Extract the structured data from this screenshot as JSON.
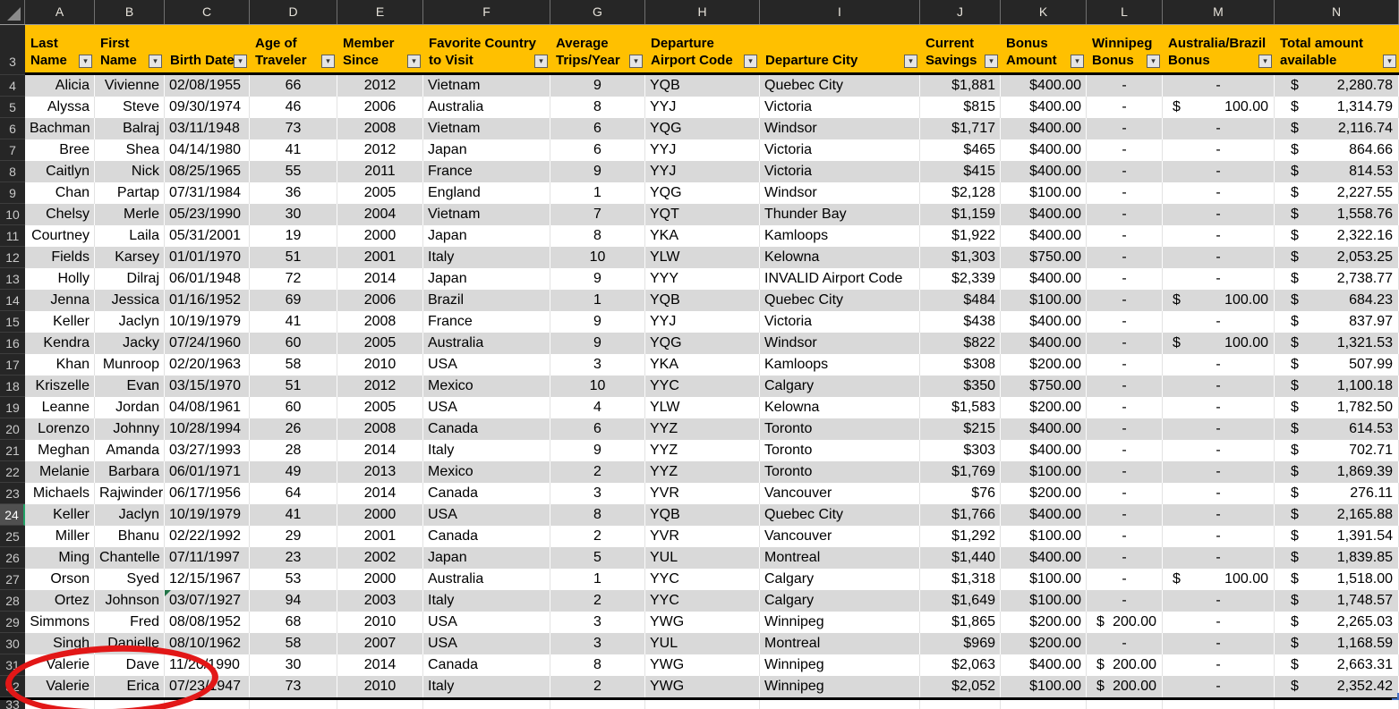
{
  "colors": {
    "header_fill": "#FFC000",
    "band_fill": "#D9D9D9",
    "frame_bg": "#262626",
    "annotation_red": "#E21717",
    "selection_green": "#21A366"
  },
  "icons": {
    "filter_dropdown": "▾",
    "select_all": "corner-triangle",
    "error_indicator": "green-triangle"
  },
  "frame": {
    "column_letters": [
      "A",
      "B",
      "C",
      "D",
      "E",
      "F",
      "G",
      "H",
      "I",
      "J",
      "K",
      "L",
      "M",
      "N"
    ],
    "header_row_number": "3",
    "partial_row_number": "33",
    "selected_row_number": "24"
  },
  "annotation": {
    "shape": "red-ellipse",
    "target": "rows 31-32 (Valerie Dave / Valerie Erica)"
  },
  "table": {
    "error_indicator": {
      "row": 28,
      "column": "birth"
    },
    "columns": [
      {
        "key": "last",
        "letter": "A",
        "label_lines": [
          "Last",
          "Name"
        ]
      },
      {
        "key": "first",
        "letter": "B",
        "label_lines": [
          "First",
          "Name"
        ]
      },
      {
        "key": "birth",
        "letter": "C",
        "label_lines": [
          "Birth Date"
        ]
      },
      {
        "key": "age",
        "letter": "D",
        "label_lines": [
          "Age of",
          "Traveler"
        ]
      },
      {
        "key": "since",
        "letter": "E",
        "label_lines": [
          "Member",
          "Since"
        ]
      },
      {
        "key": "country",
        "letter": "F",
        "label_lines": [
          "Favorite Country",
          "to Visit"
        ]
      },
      {
        "key": "trips",
        "letter": "G",
        "label_lines": [
          "Average",
          "Trips/Year"
        ]
      },
      {
        "key": "code",
        "letter": "H",
        "label_lines": [
          "Departure",
          "Airport Code"
        ]
      },
      {
        "key": "city",
        "letter": "I",
        "label_lines": [
          "Departure City"
        ]
      },
      {
        "key": "savings",
        "letter": "J",
        "label_lines": [
          "Current",
          "Savings"
        ]
      },
      {
        "key": "bonus",
        "letter": "K",
        "label_lines": [
          "Bonus",
          "Amount"
        ]
      },
      {
        "key": "wpg",
        "letter": "L",
        "label_lines": [
          "Winnipeg",
          "Bonus"
        ]
      },
      {
        "key": "ausbrz",
        "letter": "M",
        "label_lines": [
          "Australia/Brazil",
          "Bonus"
        ]
      },
      {
        "key": "total",
        "letter": "N",
        "label_lines": [
          "Total amount",
          "available"
        ]
      }
    ],
    "rows": [
      {
        "n": 4,
        "last": "Alicia",
        "first": "Vivienne",
        "birth": "02/08/1955",
        "age": "66",
        "since": "2012",
        "country": "Vietnam",
        "trips": "9",
        "code": "YQB",
        "city": "Quebec City",
        "savings": "$1,881",
        "bonus": "$400.00",
        "wpg": "-",
        "ausbrz": "-",
        "total": "2,280.78"
      },
      {
        "n": 5,
        "last": "Alyssa",
        "first": "Steve",
        "birth": "09/30/1974",
        "age": "46",
        "since": "2006",
        "country": "Australia",
        "trips": "8",
        "code": "YYJ",
        "city": "Victoria",
        "savings": "$815",
        "bonus": "$400.00",
        "wpg": "-",
        "ausbrz": "100.00",
        "total": "1,314.79"
      },
      {
        "n": 6,
        "last": "Bachman",
        "first": "Balraj",
        "birth": "03/11/1948",
        "age": "73",
        "since": "2008",
        "country": "Vietnam",
        "trips": "6",
        "code": "YQG",
        "city": "Windsor",
        "savings": "$1,717",
        "bonus": "$400.00",
        "wpg": "-",
        "ausbrz": "-",
        "total": "2,116.74"
      },
      {
        "n": 7,
        "last": "Bree",
        "first": "Shea",
        "birth": "04/14/1980",
        "age": "41",
        "since": "2012",
        "country": "Japan",
        "trips": "6",
        "code": "YYJ",
        "city": "Victoria",
        "savings": "$465",
        "bonus": "$400.00",
        "wpg": "-",
        "ausbrz": "-",
        "total": "864.66"
      },
      {
        "n": 8,
        "last": "Caitlyn",
        "first": "Nick",
        "birth": "08/25/1965",
        "age": "55",
        "since": "2011",
        "country": "France",
        "trips": "9",
        "code": "YYJ",
        "city": "Victoria",
        "savings": "$415",
        "bonus": "$400.00",
        "wpg": "-",
        "ausbrz": "-",
        "total": "814.53"
      },
      {
        "n": 9,
        "last": "Chan",
        "first": "Partap",
        "birth": "07/31/1984",
        "age": "36",
        "since": "2005",
        "country": "England",
        "trips": "1",
        "code": "YQG",
        "city": "Windsor",
        "savings": "$2,128",
        "bonus": "$100.00",
        "wpg": "-",
        "ausbrz": "-",
        "total": "2,227.55"
      },
      {
        "n": 10,
        "last": "Chelsy",
        "first": "Merle",
        "birth": "05/23/1990",
        "age": "30",
        "since": "2004",
        "country": "Vietnam",
        "trips": "7",
        "code": "YQT",
        "city": "Thunder Bay",
        "savings": "$1,159",
        "bonus": "$400.00",
        "wpg": "-",
        "ausbrz": "-",
        "total": "1,558.76"
      },
      {
        "n": 11,
        "last": "Courtney",
        "first": "Laila",
        "birth": "05/31/2001",
        "age": "19",
        "since": "2000",
        "country": "Japan",
        "trips": "8",
        "code": "YKA",
        "city": "Kamloops",
        "savings": "$1,922",
        "bonus": "$400.00",
        "wpg": "-",
        "ausbrz": "-",
        "total": "2,322.16"
      },
      {
        "n": 12,
        "last": "Fields",
        "first": "Karsey",
        "birth": "01/01/1970",
        "age": "51",
        "since": "2001",
        "country": "Italy",
        "trips": "10",
        "code": "YLW",
        "city": "Kelowna",
        "savings": "$1,303",
        "bonus": "$750.00",
        "wpg": "-",
        "ausbrz": "-",
        "total": "2,053.25"
      },
      {
        "n": 13,
        "last": "Holly",
        "first": "Dilraj",
        "birth": "06/01/1948",
        "age": "72",
        "since": "2014",
        "country": "Japan",
        "trips": "9",
        "code": "YYY",
        "city": "INVALID Airport Code",
        "savings": "$2,339",
        "bonus": "$400.00",
        "wpg": "-",
        "ausbrz": "-",
        "total": "2,738.77"
      },
      {
        "n": 14,
        "last": "Jenna",
        "first": "Jessica",
        "birth": "01/16/1952",
        "age": "69",
        "since": "2006",
        "country": "Brazil",
        "trips": "1",
        "code": "YQB",
        "city": "Quebec City",
        "savings": "$484",
        "bonus": "$100.00",
        "wpg": "-",
        "ausbrz": "100.00",
        "total": "684.23"
      },
      {
        "n": 15,
        "last": "Keller",
        "first": "Jaclyn",
        "birth": "10/19/1979",
        "age": "41",
        "since": "2008",
        "country": "France",
        "trips": "9",
        "code": "YYJ",
        "city": "Victoria",
        "savings": "$438",
        "bonus": "$400.00",
        "wpg": "-",
        "ausbrz": "-",
        "total": "837.97"
      },
      {
        "n": 16,
        "last": "Kendra",
        "first": "Jacky",
        "birth": "07/24/1960",
        "age": "60",
        "since": "2005",
        "country": "Australia",
        "trips": "9",
        "code": "YQG",
        "city": "Windsor",
        "savings": "$822",
        "bonus": "$400.00",
        "wpg": "-",
        "ausbrz": "100.00",
        "total": "1,321.53"
      },
      {
        "n": 17,
        "last": "Khan",
        "first": "Munroop",
        "birth": "02/20/1963",
        "age": "58",
        "since": "2010",
        "country": "USA",
        "trips": "3",
        "code": "YKA",
        "city": "Kamloops",
        "savings": "$308",
        "bonus": "$200.00",
        "wpg": "-",
        "ausbrz": "-",
        "total": "507.99"
      },
      {
        "n": 18,
        "last": "Kriszelle",
        "first": "Evan",
        "birth": "03/15/1970",
        "age": "51",
        "since": "2012",
        "country": "Mexico",
        "trips": "10",
        "code": "YYC",
        "city": "Calgary",
        "savings": "$350",
        "bonus": "$750.00",
        "wpg": "-",
        "ausbrz": "-",
        "total": "1,100.18"
      },
      {
        "n": 19,
        "last": "Leanne",
        "first": "Jordan",
        "birth": "04/08/1961",
        "age": "60",
        "since": "2005",
        "country": "USA",
        "trips": "4",
        "code": "YLW",
        "city": "Kelowna",
        "savings": "$1,583",
        "bonus": "$200.00",
        "wpg": "-",
        "ausbrz": "-",
        "total": "1,782.50"
      },
      {
        "n": 20,
        "last": "Lorenzo",
        "first": "Johnny",
        "birth": "10/28/1994",
        "age": "26",
        "since": "2008",
        "country": "Canada",
        "trips": "6",
        "code": "YYZ",
        "city": "Toronto",
        "savings": "$215",
        "bonus": "$400.00",
        "wpg": "-",
        "ausbrz": "-",
        "total": "614.53"
      },
      {
        "n": 21,
        "last": "Meghan",
        "first": "Amanda",
        "birth": "03/27/1993",
        "age": "28",
        "since": "2014",
        "country": "Italy",
        "trips": "9",
        "code": "YYZ",
        "city": "Toronto",
        "savings": "$303",
        "bonus": "$400.00",
        "wpg": "-",
        "ausbrz": "-",
        "total": "702.71"
      },
      {
        "n": 22,
        "last": "Melanie",
        "first": "Barbara",
        "birth": "06/01/1971",
        "age": "49",
        "since": "2013",
        "country": "Mexico",
        "trips": "2",
        "code": "YYZ",
        "city": "Toronto",
        "savings": "$1,769",
        "bonus": "$100.00",
        "wpg": "-",
        "ausbrz": "-",
        "total": "1,869.39"
      },
      {
        "n": 23,
        "last": "Michaels",
        "first": "Rajwinder",
        "birth": "06/17/1956",
        "age": "64",
        "since": "2014",
        "country": "Canada",
        "trips": "3",
        "code": "YVR",
        "city": "Vancouver",
        "savings": "$76",
        "bonus": "$200.00",
        "wpg": "-",
        "ausbrz": "-",
        "total": "276.11"
      },
      {
        "n": 24,
        "last": "Keller",
        "first": "Jaclyn",
        "birth": "10/19/1979",
        "age": "41",
        "since": "2000",
        "country": "USA",
        "trips": "8",
        "code": "YQB",
        "city": "Quebec City",
        "savings": "$1,766",
        "bonus": "$400.00",
        "wpg": "-",
        "ausbrz": "-",
        "total": "2,165.88"
      },
      {
        "n": 25,
        "last": "Miller",
        "first": "Bhanu",
        "birth": "02/22/1992",
        "age": "29",
        "since": "2001",
        "country": "Canada",
        "trips": "2",
        "code": "YVR",
        "city": "Vancouver",
        "savings": "$1,292",
        "bonus": "$100.00",
        "wpg": "-",
        "ausbrz": "-",
        "total": "1,391.54"
      },
      {
        "n": 26,
        "last": "Ming",
        "first": "Chantelle",
        "birth": "07/11/1997",
        "age": "23",
        "since": "2002",
        "country": "Japan",
        "trips": "5",
        "code": "YUL",
        "city": "Montreal",
        "savings": "$1,440",
        "bonus": "$400.00",
        "wpg": "-",
        "ausbrz": "-",
        "total": "1,839.85"
      },
      {
        "n": 27,
        "last": "Orson",
        "first": "Syed",
        "birth": "12/15/1967",
        "age": "53",
        "since": "2000",
        "country": "Australia",
        "trips": "1",
        "code": "YYC",
        "city": "Calgary",
        "savings": "$1,318",
        "bonus": "$100.00",
        "wpg": "-",
        "ausbrz": "100.00",
        "total": "1,518.00"
      },
      {
        "n": 28,
        "last": "Ortez",
        "first": "Johnson",
        "birth": "03/07/1927",
        "age": "94",
        "since": "2003",
        "country": "Italy",
        "trips": "2",
        "code": "YYC",
        "city": "Calgary",
        "savings": "$1,649",
        "bonus": "$100.00",
        "wpg": "-",
        "ausbrz": "-",
        "total": "1,748.57"
      },
      {
        "n": 29,
        "last": "Simmons",
        "first": "Fred",
        "birth": "08/08/1952",
        "age": "68",
        "since": "2010",
        "country": "USA",
        "trips": "3",
        "code": "YWG",
        "city": "Winnipeg",
        "savings": "$1,865",
        "bonus": "$200.00",
        "wpg": "200.00",
        "ausbrz": "-",
        "total": "2,265.03"
      },
      {
        "n": 30,
        "last": "Singh",
        "first": "Danielle",
        "birth": "08/10/1962",
        "age": "58",
        "since": "2007",
        "country": "USA",
        "trips": "3",
        "code": "YUL",
        "city": "Montreal",
        "savings": "$969",
        "bonus": "$200.00",
        "wpg": "-",
        "ausbrz": "-",
        "total": "1,168.59"
      },
      {
        "n": 31,
        "last": "Valerie",
        "first": "Dave",
        "birth": "11/20/1990",
        "age": "30",
        "since": "2014",
        "country": "Canada",
        "trips": "8",
        "code": "YWG",
        "city": "Winnipeg",
        "savings": "$2,063",
        "bonus": "$400.00",
        "wpg": "200.00",
        "ausbrz": "-",
        "total": "2,663.31"
      },
      {
        "n": 32,
        "last": "Valerie",
        "first": "Erica",
        "birth": "07/23/1947",
        "age": "73",
        "since": "2010",
        "country": "Italy",
        "trips": "2",
        "code": "YWG",
        "city": "Winnipeg",
        "savings": "$2,052",
        "bonus": "$100.00",
        "wpg": "200.00",
        "ausbrz": "-",
        "total": "2,352.42"
      }
    ]
  }
}
